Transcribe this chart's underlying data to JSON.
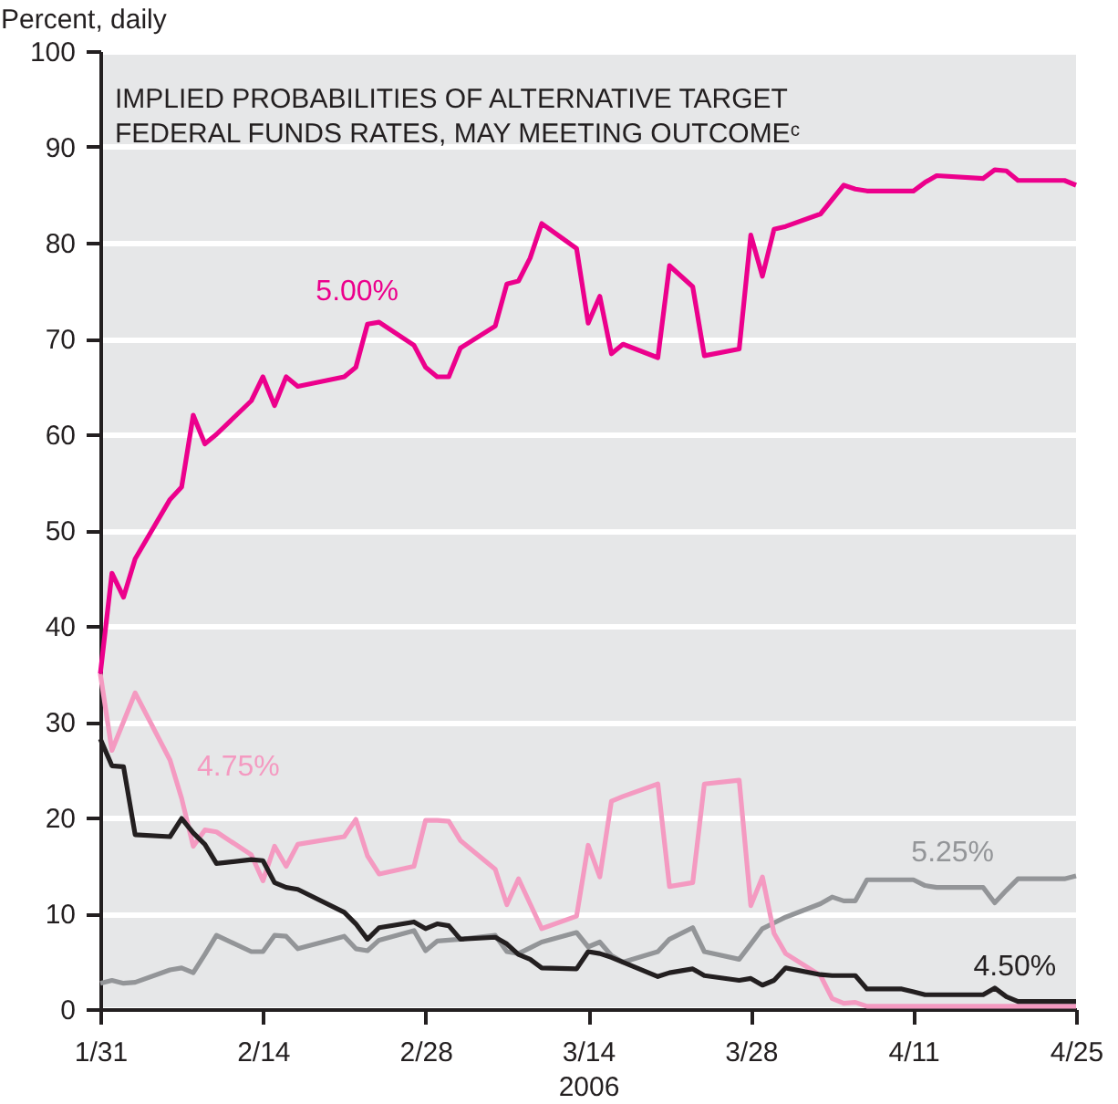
{
  "chart_data": {
    "type": "line",
    "title": "IMPLIED PROBABILITIES OF ALTERNATIVE TARGET\nFEDERAL FUNDS RATES, MAY MEETING OUTCOMEᶜ",
    "ylabel": "Percent, daily",
    "xlabel": "2006",
    "x": [
      "2006-01-31",
      "2006-02-01",
      "2006-02-02",
      "2006-02-03",
      "2006-02-06",
      "2006-02-07",
      "2006-02-08",
      "2006-02-09",
      "2006-02-10",
      "2006-02-13",
      "2006-02-14",
      "2006-02-15",
      "2006-02-16",
      "2006-02-17",
      "2006-02-21",
      "2006-02-22",
      "2006-02-23",
      "2006-02-24",
      "2006-02-27",
      "2006-02-28",
      "2006-03-01",
      "2006-03-02",
      "2006-03-03",
      "2006-03-06",
      "2006-03-07",
      "2006-03-08",
      "2006-03-09",
      "2006-03-10",
      "2006-03-13",
      "2006-03-14",
      "2006-03-15",
      "2006-03-16",
      "2006-03-17",
      "2006-03-20",
      "2006-03-21",
      "2006-03-23",
      "2006-03-24",
      "2006-03-27",
      "2006-03-28",
      "2006-03-29",
      "2006-03-30",
      "2006-03-31",
      "2006-04-03",
      "2006-04-04",
      "2006-04-05",
      "2006-04-06",
      "2006-04-07",
      "2006-04-10",
      "2006-04-11",
      "2006-04-12",
      "2006-04-13",
      "2006-04-17",
      "2006-04-18",
      "2006-04-19",
      "2006-04-20",
      "2006-04-24",
      "2006-04-25"
    ],
    "series": [
      {
        "name": "5.25%",
        "color": "#939598",
        "values": [
          2.7,
          3,
          2.7,
          2.8,
          4.1,
          4.3,
          3.8,
          5.7,
          7.7,
          6,
          6,
          7.7,
          7.6,
          6.3,
          7.6,
          6.3,
          6.1,
          7.2,
          8.2,
          6.1,
          7.1,
          7.2,
          7.3,
          7.7,
          6,
          5.8,
          6.4,
          7,
          8,
          6.5,
          7,
          5.6,
          4.9,
          6,
          7.3,
          8.5,
          6,
          5.2,
          6.8,
          8.4,
          9,
          9.6,
          11,
          11.7,
          11.3,
          11.3,
          13.5,
          13.5,
          13.5,
          12.9,
          12.7,
          12.7,
          11.1,
          12.4,
          13.6,
          13.6,
          13.9
        ]
      },
      {
        "name": "4.75%",
        "color": "#f49ac1",
        "values": [
          35,
          27,
          30,
          33,
          26,
          22,
          17,
          18.7,
          18.5,
          16.1,
          13.4,
          17,
          14.9,
          17.2,
          18,
          19.8,
          16,
          14.1,
          14.9,
          19.7,
          19.7,
          19.6,
          17.6,
          14.6,
          10.9,
          13.6,
          11,
          8.4,
          9.7,
          17.1,
          13.8,
          21.7,
          22.2,
          23.5,
          12.8,
          13.2,
          23.5,
          23.9,
          10.8,
          13.8,
          7.9,
          5.8,
          3.5,
          1.1,
          0.6,
          0.7,
          0.3,
          0.3,
          0.3,
          0.3,
          0.3,
          0.3,
          0.3,
          0.3,
          0.3,
          0.3,
          0.3
        ]
      },
      {
        "name": "4.50%",
        "color": "#231f20",
        "values": [
          28.2,
          25.4,
          25.3,
          18.2,
          18,
          19.9,
          18.4,
          17.2,
          15.2,
          15.6,
          15.5,
          13.2,
          12.7,
          12.5,
          10.1,
          8.9,
          7.3,
          8.5,
          9.1,
          8.4,
          8.9,
          8.7,
          7.3,
          7.5,
          6.8,
          5.7,
          5.2,
          4.3,
          4.2,
          6,
          5.8,
          5.4,
          4.9,
          3.4,
          3.8,
          4.2,
          3.5,
          3,
          3.2,
          2.5,
          3,
          4.3,
          3.6,
          3.5,
          3.5,
          3.5,
          2.1,
          2.1,
          1.8,
          1.5,
          1.5,
          1.5,
          2.2,
          1.3,
          0.8,
          0.8,
          0.8
        ]
      },
      {
        "name": "5.00%",
        "color": "#ec008c",
        "values": [
          35,
          45.5,
          43,
          47,
          53.2,
          54.5,
          62,
          59,
          60,
          63.5,
          66,
          63,
          66,
          65,
          66,
          67,
          71.5,
          71.7,
          69.3,
          67,
          66,
          66,
          69,
          71.3,
          75.7,
          76,
          78.4,
          82,
          79.4,
          71.6,
          74.4,
          68.4,
          69.4,
          68,
          77.6,
          75.4,
          68.2,
          68.9,
          80.8,
          76.5,
          81.4,
          81.7,
          83,
          84.5,
          86,
          85.6,
          85.4,
          85.4,
          85.4,
          86.3,
          87,
          86.7,
          87.6,
          87.5,
          86.5,
          86.5,
          86
        ]
      }
    ],
    "xlim": [
      "2006-01-31",
      "2006-04-25"
    ],
    "xticks": [
      {
        "value": "2006-01-31",
        "label": "1/31"
      },
      {
        "value": "2006-02-14",
        "label": "2/14"
      },
      {
        "value": "2006-02-28",
        "label": "2/28"
      },
      {
        "value": "2006-03-14",
        "label": "3/14"
      },
      {
        "value": "2006-03-28",
        "label": "3/28"
      },
      {
        "value": "2006-04-11",
        "label": "4/11"
      },
      {
        "value": "2006-04-25",
        "label": "4/25"
      }
    ],
    "ylim": [
      0,
      100
    ],
    "yticks": [
      0,
      10,
      20,
      30,
      40,
      50,
      60,
      70,
      80,
      90,
      100
    ],
    "grid": "y",
    "marker": "none",
    "line_style": "solid"
  }
}
